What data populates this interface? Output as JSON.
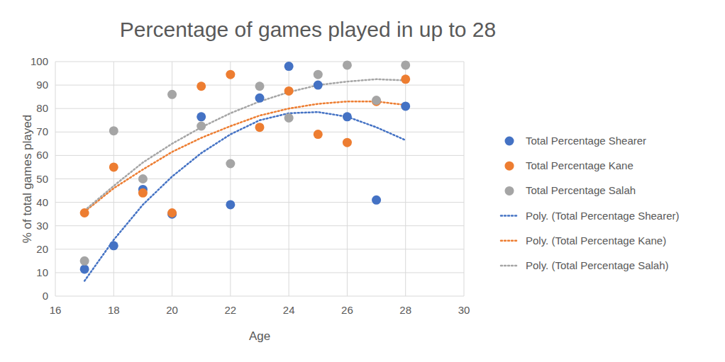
{
  "chart_data": {
    "type": "scatter",
    "title": "Percentage of games played in up to 28",
    "x_label": "Age",
    "y_label": "% of total games played",
    "x": [
      17,
      18,
      19,
      20,
      21,
      22,
      23,
      24,
      25,
      26,
      27,
      28
    ],
    "series": [
      {
        "name": "Total Percentage Shearer",
        "type": "scatter",
        "marker": "circle",
        "color": "#4472c4",
        "values": [
          11.5,
          21.5,
          45.5,
          35,
          76.5,
          39,
          84.5,
          98,
          90,
          76.5,
          41,
          81
        ]
      },
      {
        "name": "Total Percentage Kane",
        "type": "scatter",
        "marker": "circle",
        "color": "#ed7d31",
        "values": [
          35.5,
          55,
          44,
          35.5,
          89.5,
          94.5,
          72,
          87.5,
          69,
          65.5,
          83,
          92.5
        ]
      },
      {
        "name": "Total Percentage Salah",
        "type": "scatter",
        "marker": "circle",
        "color": "#a5a5a5",
        "values": [
          15,
          70.5,
          50,
          86,
          72.5,
          56.5,
          89.5,
          76,
          94.5,
          98.5,
          83.5,
          98.5
        ]
      },
      {
        "name": "Poly. (Total Percentage Shearer)",
        "type": "line",
        "line_style": "dotted",
        "color": "#4472c4",
        "values": [
          6.5,
          24,
          39,
          51,
          61,
          69,
          75,
          78,
          78.5,
          76.5,
          72,
          66.5
        ]
      },
      {
        "name": "Poly. (Total Percentage Kane)",
        "type": "line",
        "line_style": "dotted",
        "color": "#ed7d31",
        "values": [
          36,
          46,
          54,
          61.5,
          67.5,
          72.5,
          77,
          80,
          82,
          83,
          83,
          81.5
        ]
      },
      {
        "name": "Poly. (Total Percentage Salah)",
        "type": "line",
        "line_style": "dotted",
        "color": "#a5a5a5",
        "values": [
          36.5,
          47,
          57,
          65,
          72,
          78,
          83,
          87,
          90,
          91.5,
          92.5,
          92
        ]
      }
    ],
    "xlim": [
      16,
      30
    ],
    "xticks": [
      16,
      18,
      20,
      22,
      24,
      26,
      28,
      30
    ],
    "ylim": [
      0,
      100
    ],
    "yticks": [
      0,
      10,
      20,
      30,
      40,
      50,
      60,
      70,
      80,
      90,
      100
    ],
    "grid": true,
    "legend": "right"
  }
}
